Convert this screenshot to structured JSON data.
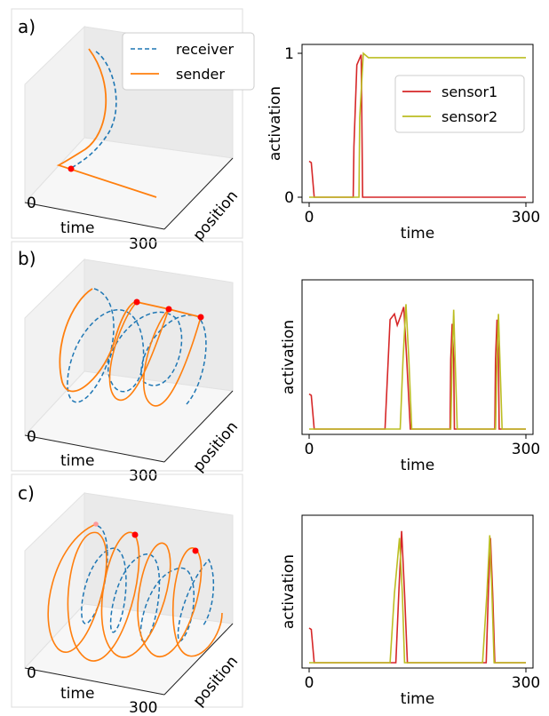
{
  "chart_data": [
    {
      "panel": "a)",
      "type": "line3d",
      "xlabel": "time",
      "ylabel": "position",
      "x_ticks": [
        "0",
        "300"
      ],
      "legend": [
        "receiver",
        "sender"
      ],
      "series": [
        {
          "name": "receiver",
          "style": "dashed",
          "color": "#1f77b4"
        },
        {
          "name": "sender",
          "style": "solid",
          "color": "#ff7f0e"
        }
      ],
      "meeting_points": 1
    },
    {
      "type": "line",
      "xlabel": "time",
      "ylabel": "activation",
      "x_ticks": [
        "0",
        "300"
      ],
      "y_ticks": [
        "0",
        "1"
      ],
      "xlim": [
        0,
        300
      ],
      "ylim": [
        0,
        1
      ],
      "legend_position": "right",
      "series": [
        {
          "name": "sensor1",
          "color": "#d62728",
          "x": [
            0,
            3,
            7,
            8,
            61,
            62,
            66,
            72,
            74,
            80,
            300
          ],
          "y": [
            0.25,
            0.24,
            0,
            0,
            0,
            0.35,
            0.92,
            0.99,
            0,
            0,
            0
          ]
        },
        {
          "name": "sensor2",
          "color": "#bcbd22",
          "x": [
            0,
            69,
            70,
            75,
            82,
            100,
            300
          ],
          "y": [
            0,
            0,
            0.55,
            1.0,
            0.97,
            0.97,
            0.97
          ]
        }
      ]
    },
    {
      "panel": "b)",
      "type": "line3d",
      "xlabel": "time",
      "ylabel": "position",
      "x_ticks": [
        "0",
        "300"
      ],
      "series": [
        {
          "name": "receiver",
          "style": "dashed",
          "color": "#1f77b4"
        },
        {
          "name": "sender",
          "style": "solid",
          "color": "#ff7f0e"
        }
      ],
      "meeting_points": 3
    },
    {
      "type": "line",
      "xlabel": "time",
      "ylabel": "activation",
      "x_ticks": [
        "0",
        "300"
      ],
      "xlim": [
        0,
        300
      ],
      "ylim": [
        0,
        1
      ],
      "series": [
        {
          "name": "sensor1",
          "color": "#d62728",
          "x": [
            0,
            3,
            7,
            8,
            105,
            112,
            118,
            122,
            127,
            131,
            135,
            140,
            195,
            196,
            198,
            200,
            201,
            257,
            258,
            260,
            262,
            263,
            300
          ],
          "y": [
            0.25,
            0.24,
            0,
            0,
            0,
            0.78,
            0.82,
            0.74,
            0.81,
            0.87,
            0.5,
            0,
            0,
            0.5,
            0.75,
            0.5,
            0,
            0,
            0.5,
            0.78,
            0.5,
            0,
            0
          ]
        },
        {
          "name": "sensor2",
          "color": "#bcbd22",
          "x": [
            0,
            126,
            130,
            134,
            138,
            142,
            196,
            198,
            200,
            202,
            205,
            258,
            260,
            262,
            264,
            267,
            300
          ],
          "y": [
            0,
            0,
            0.5,
            0.89,
            0.5,
            0,
            0,
            0.5,
            0.85,
            0.5,
            0,
            0,
            0.5,
            0.82,
            0.5,
            0,
            0
          ]
        }
      ]
    },
    {
      "panel": "c)",
      "type": "line3d",
      "xlabel": "time",
      "ylabel": "position",
      "x_ticks": [
        "0",
        "300"
      ],
      "series": [
        {
          "name": "receiver",
          "style": "dashed",
          "color": "#1f77b4"
        },
        {
          "name": "sender",
          "style": "solid",
          "color": "#ff7f0e"
        }
      ],
      "meeting_points": 3
    },
    {
      "type": "line",
      "xlabel": "time",
      "ylabel": "activation",
      "x_ticks": [
        "0",
        "300"
      ],
      "xlim": [
        0,
        300
      ],
      "ylim": [
        0,
        1
      ],
      "series": [
        {
          "name": "sensor1",
          "color": "#d62728",
          "x": [
            0,
            3,
            7,
            8,
            120,
            124,
            128,
            132,
            136,
            245,
            248,
            251,
            254,
            257,
            300
          ],
          "y": [
            0.25,
            0.24,
            0,
            0,
            0,
            0.5,
            0.95,
            0.5,
            0,
            0,
            0.5,
            0.9,
            0.5,
            0,
            0
          ]
        },
        {
          "name": "sensor2",
          "color": "#bcbd22",
          "x": [
            0,
            112,
            118,
            125,
            129,
            132,
            240,
            246,
            250,
            253,
            256,
            300
          ],
          "y": [
            0,
            0,
            0.5,
            0.9,
            0.5,
            0,
            0,
            0.5,
            0.92,
            0.5,
            0,
            0
          ]
        }
      ]
    }
  ]
}
